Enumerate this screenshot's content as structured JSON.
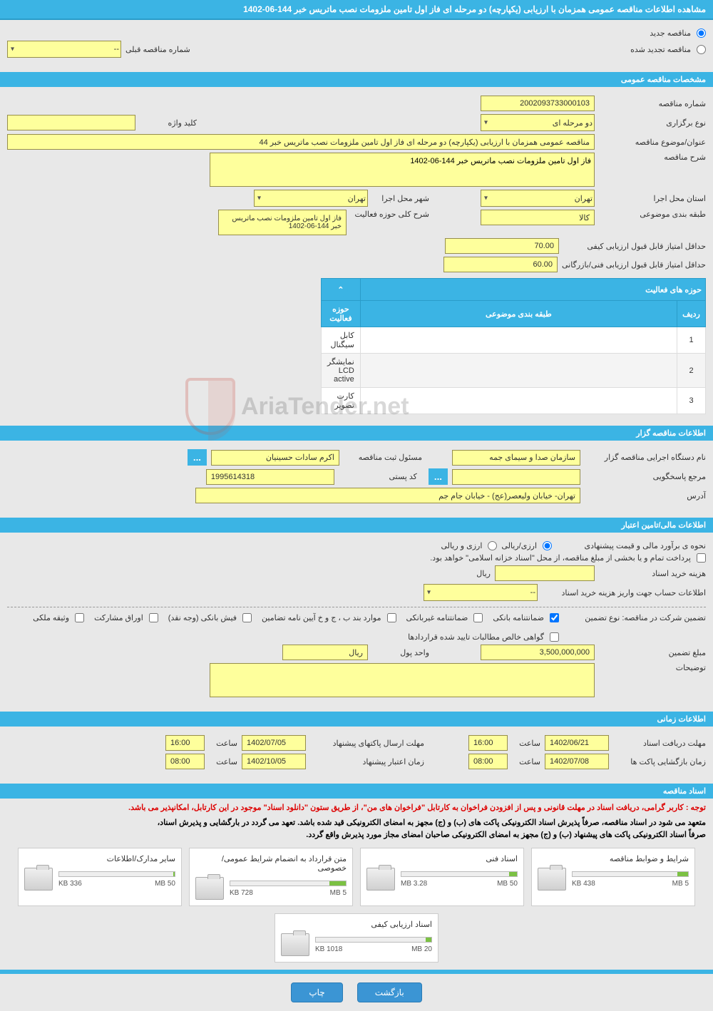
{
  "title": "مشاهده اطلاعات مناقصه عمومی همزمان با ارزیابی (یکپارچه) دو مرحله ای فاز اول تامین ملزومات نصب ماتریس خبر 144-06-1402",
  "top": {
    "new_tender": "مناقصه جدید",
    "renewed_tender": "مناقصه تجدید شده",
    "prev_tender_no_label": "شماره مناقصه قبلی",
    "prev_tender_no": "--"
  },
  "sections": {
    "general": "مشخصات مناقصه عمومی",
    "authority": "اطلاعات مناقصه گزار",
    "financial": "اطلاعات مالی/تامین اعتبار",
    "timing": "اطلاعات زمانی",
    "documents": "اسناد مناقصه"
  },
  "general": {
    "tender_no_label": "شماره مناقصه",
    "tender_no": "2002093733000103",
    "type_label": "نوع برگزاری",
    "type": "دو مرحله ای",
    "keyword_label": "کلید واژه",
    "keyword": "",
    "subject_label": "عنوان/موضوع مناقصه",
    "subject": "مناقصه عمومی همزمان با ارزیابی (یکپارچه) دو مرحله ای فاز اول تامین ملزومات نصب ماتریس خبر 44",
    "desc_label": "شرح مناقصه",
    "desc": "فاز اول تامین ملزومات نصب ماتریس خبر 144-06-1402",
    "province_label": "استان محل اجرا",
    "province": "تهران",
    "city_label": "شهر محل اجرا",
    "city": "تهران",
    "category_label": "طبقه بندی موضوعی",
    "category": "کالا",
    "activity_desc_label": "شرح کلی حوزه فعالیت",
    "activity_desc": "فاز اول تامین ملزومات نصب ماتریس خبر 144-06-1402",
    "min_quality_label": "حداقل امتیاز قابل قبول ارزیابی کیفی",
    "min_quality": "70.00",
    "min_tech_label": "حداقل امتیاز قابل قبول ارزیابی فنی/بازرگانی",
    "min_tech": "60.00"
  },
  "activities": {
    "table_title": "حوزه های فعالیت",
    "h_row": "ردیف",
    "h_category": "طبقه بندی موضوعی",
    "h_activity": "حوزه فعالیت",
    "rows": [
      {
        "n": "1",
        "cat": "",
        "act": "کابل سیگنال"
      },
      {
        "n": "2",
        "cat": "",
        "act": "نمایشگر LCD active"
      },
      {
        "n": "3",
        "cat": "",
        "act": "کارت تصویر"
      }
    ]
  },
  "authority": {
    "org_label": "نام دستگاه اجرایی مناقصه گزار",
    "org": "سازمان صدا و سیمای جمه",
    "manager_label": "مسئول ثبت مناقصه",
    "manager": "اکرم سادات حسینیان",
    "response_label": "مرجع پاسخگویی",
    "response": "",
    "postal_label": "کد پستی",
    "postal": "1995614318",
    "address_label": "آدرس",
    "address": "تهران- خیابان ولیعصر(عج) - خیابان جام جم"
  },
  "financial": {
    "estimate_label": "نحوه ی برآورد مالی و قیمت پیشنهادی",
    "opt_arzi_rial": "ارزی/ریالی",
    "opt_arzi_o_rial": "ارزی و ریالی",
    "payment_note": "پرداخت تمام و یا بخشی از مبلغ مناقصه، از محل \"اسناد خزانه اسلامی\" خواهد بود.",
    "doc_cost_label": "هزینه خرید اسناد",
    "doc_cost_unit": "ریال",
    "account_label": "اطلاعات حساب جهت واریز هزینه خرید اسناد",
    "account": "--",
    "guarantee_type_label": "تضمین شرکت در مناقصه:   نوع تضمین",
    "checks": {
      "bank_guarantee": "ضمانتنامه بانکی",
      "nonbank_guarantee": "ضمانتنامه غیربانکی",
      "items_bpjt": "موارد بند ب ، ج و خ آیین نامه تضامین",
      "bank_receipt": "فیش بانکی (وجه نقد)",
      "securities": "اوراق مشارکت",
      "deed": "وثیقه ملکی",
      "cert": "گواهی خالص مطالبات تایید شده قراردادها"
    },
    "guarantee_amount_label": "مبلغ تضمین",
    "guarantee_amount": "3,500,000,000",
    "currency_label": "واحد پول",
    "currency": "ریال",
    "notes_label": "توضیحات",
    "notes": ""
  },
  "timing": {
    "deadline_docs_label": "مهلت دریافت اسناد",
    "deadline_docs_date": "1402/06/21",
    "deadline_docs_time": "16:00",
    "deadline_send_label": "مهلت ارسال پاکتهای پیشنهاد",
    "deadline_send_date": "1402/07/05",
    "deadline_send_time": "16:00",
    "opening_label": "زمان بازگشایی پاکت ها",
    "opening_date": "1402/07/08",
    "opening_time": "08:00",
    "validity_label": "زمان اعتبار پیشنهاد",
    "validity_date": "1402/10/05",
    "validity_time": "08:00",
    "time_label": "ساعت"
  },
  "documents": {
    "notice1": "توجه : کاربر گرامی، دریافت اسناد در مهلت قانونی و پس از افزودن فراخوان به کارتابل \"فراخوان های من\"، از طریق ستون \"دانلود اسناد\" موجود در این کارتابل، امکانپذیر می باشد.",
    "notice2": "متعهد می شود در اسناد مناقصه، صرفاً پذیرش اسناد الکترونیکی پاکت های (ب) و (ج) مجهز به امضای الکترونیکی قید شده باشد. تعهد می گردد در بارگشایی و پذیرش اسناد،",
    "notice3": "صرفاً اسناد الکترونیکی پاکت های پیشنهاد (ب) و (ج) مجهز به امضای الکترونیکی صاحبان امضای مجاز مورد پذیرش واقع گردد.",
    "items": [
      {
        "title": "شرایط و ضوابط مناقصه",
        "used": "438 KB",
        "total": "5 MB",
        "fill": 9
      },
      {
        "title": "اسناد فنی",
        "used": "3.28 MB",
        "total": "50 MB",
        "fill": 7
      },
      {
        "title": "متن قرارداد به انضمام شرایط عمومی/خصوصی",
        "used": "728 KB",
        "total": "5 MB",
        "fill": 14
      },
      {
        "title": "سایر مدارک/اطلاعات",
        "used": "336 KB",
        "total": "50 MB",
        "fill": 1
      },
      {
        "title": "اسناد ارزیابی کیفی",
        "used": "1018 KB",
        "total": "20 MB",
        "fill": 5
      }
    ]
  },
  "buttons": {
    "back": "بازگشت",
    "print": "چاپ"
  },
  "watermark": "AriaTender.net",
  "colors": {
    "section_bg": "#3bb4e4",
    "field_bg": "#feff9c",
    "field_border": "#968e4b",
    "btn_bg": "#3b95d4",
    "progress_fill": "#7bc143"
  }
}
